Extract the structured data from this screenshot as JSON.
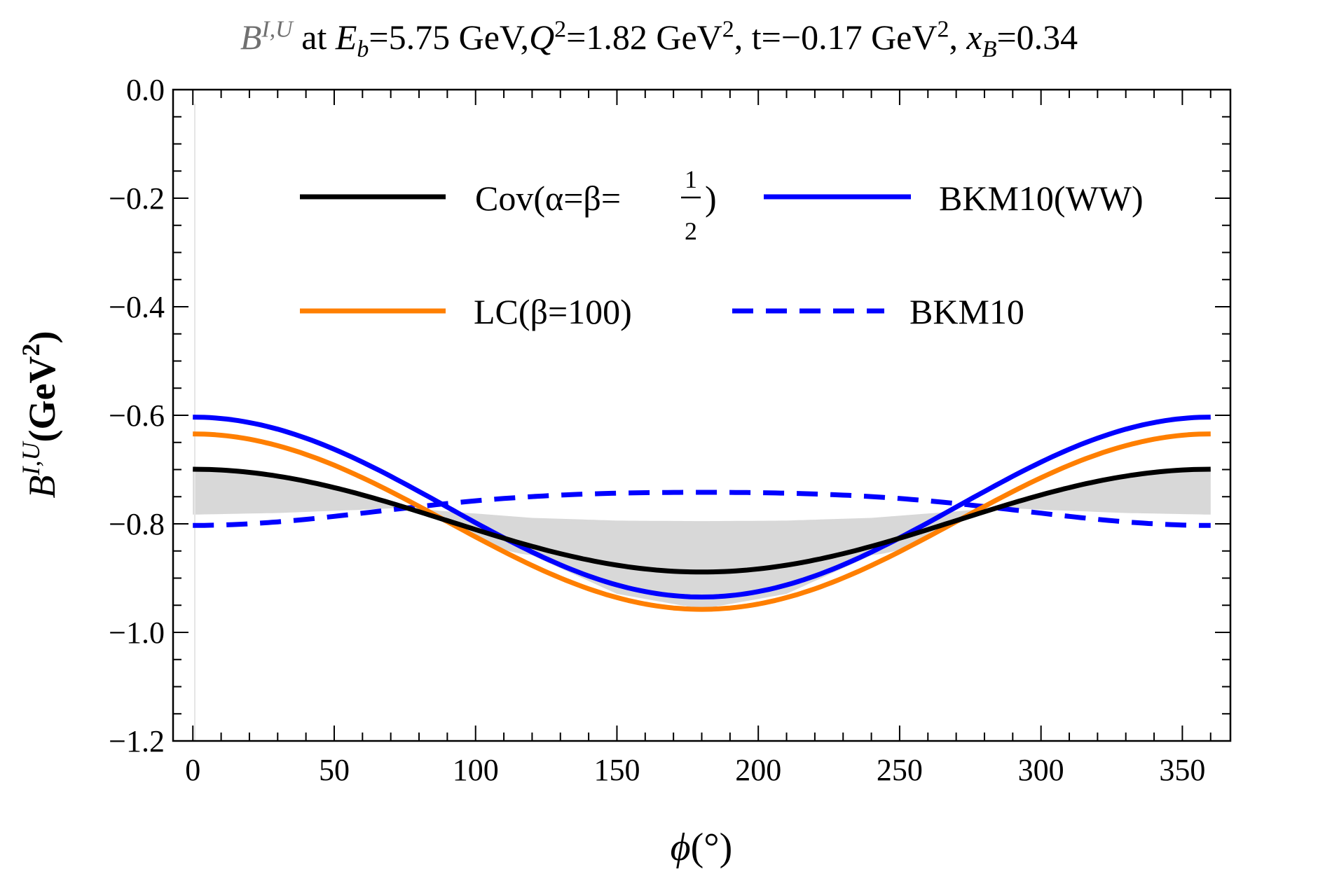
{
  "chart_data": {
    "type": "line",
    "title": {
      "symbol": "B",
      "symbol_sup": "I,U",
      "text": "at E_b=5.75 GeV,Q^2=1.82 GeV^2, t=−0.17 GeV^2, x_B=0.34",
      "parts": {
        "at": "at ",
        "e_var": "E",
        "e_sub": "b",
        "e_val": "=5.75 GeV,",
        "q_var": "Q",
        "q_sup": "2",
        "q_val": "=1.82 GeV",
        "q_unit_sup": "2",
        "t_val": ", t=−0.17 GeV",
        "t_unit_sup": "2",
        "x_sep": ", ",
        "x_var": "x",
        "x_sub": "B",
        "x_val": "=0.34"
      }
    },
    "xlabel": {
      "var": "ϕ",
      "unit": "(°)"
    },
    "ylabel": {
      "var": "B",
      "sup": "I,U",
      "unit": "(GeV",
      "unit_sup": "2",
      "unit_close": ")"
    },
    "xlim": [
      -7,
      367
    ],
    "ylim": [
      -1.2,
      0.0
    ],
    "x_ticks": [
      0,
      50,
      100,
      150,
      200,
      250,
      300,
      350
    ],
    "x_tick_labels": [
      "0",
      "50",
      "100",
      "150",
      "200",
      "250",
      "300",
      "350"
    ],
    "y_ticks": [
      0.0,
      -0.2,
      -0.4,
      -0.6,
      -0.8,
      -1.0,
      -1.2
    ],
    "y_tick_labels": [
      "0.0",
      "−0.2",
      "−0.4",
      "−0.6",
      "−0.8",
      "−1.0",
      "−1.2"
    ],
    "curve_model": "y(phi) = c0 + c1*cos(phi) + c2*cos(2*phi)",
    "series": [
      {
        "name": "Cov(α=β=1/2)",
        "color": "#000000",
        "style": "solid",
        "coeffs": [
          -0.7941,
          0.0947,
          0.0
        ]
      },
      {
        "name": "BKM10(WW)",
        "color": "#0000ff",
        "style": "solid",
        "coeffs": [
          -0.7691,
          0.1657,
          0.0
        ]
      },
      {
        "name": "LC(β=100)",
        "color": "#ff7f00",
        "style": "solid",
        "coeffs": [
          -0.7959,
          0.1616,
          0.0
        ]
      },
      {
        "name": "BKM10",
        "color": "#0000ff",
        "style": "dashed",
        "coeffs": [
          -0.7675,
          -0.0305,
          -0.0049
        ]
      }
    ],
    "band": {
      "name": "uncertainty band",
      "color": "#d8d8d8",
      "upper_coeffs": [
        -0.7941,
        0.0947,
        0.0
      ],
      "lower_points": [
        [
          0,
          -0.783
        ],
        [
          30,
          -0.78
        ],
        [
          60,
          -0.774
        ],
        [
          75,
          -0.77
        ],
        [
          90,
          -0.777
        ],
        [
          120,
          -0.789
        ],
        [
          150,
          -0.794
        ],
        [
          180,
          -0.795
        ],
        [
          210,
          -0.794
        ],
        [
          240,
          -0.789
        ],
        [
          270,
          -0.777
        ],
        [
          285,
          -0.77
        ],
        [
          300,
          -0.774
        ],
        [
          330,
          -0.78
        ],
        [
          360,
          -0.783
        ]
      ],
      "lower_min_points": [
        [
          120,
          -0.858
        ],
        [
          150,
          -0.929
        ],
        [
          180,
          -0.957
        ],
        [
          210,
          -0.929
        ],
        [
          240,
          -0.858
        ]
      ]
    },
    "legend": {
      "placement": "top-center",
      "entries": [
        {
          "label_main": "Cov(α=β=",
          "frac_num": "1",
          "frac_den": "2",
          "label_close": ")",
          "color": "#000000",
          "style": "solid"
        },
        {
          "label_main": "BKM10(WW)",
          "color": "#0000ff",
          "style": "solid"
        },
        {
          "label_main": "LC(β=100)",
          "color": "#ff7f00",
          "style": "solid"
        },
        {
          "label_main": "BKM10",
          "color": "#0000ff",
          "style": "dashed"
        }
      ]
    },
    "grid": false
  }
}
